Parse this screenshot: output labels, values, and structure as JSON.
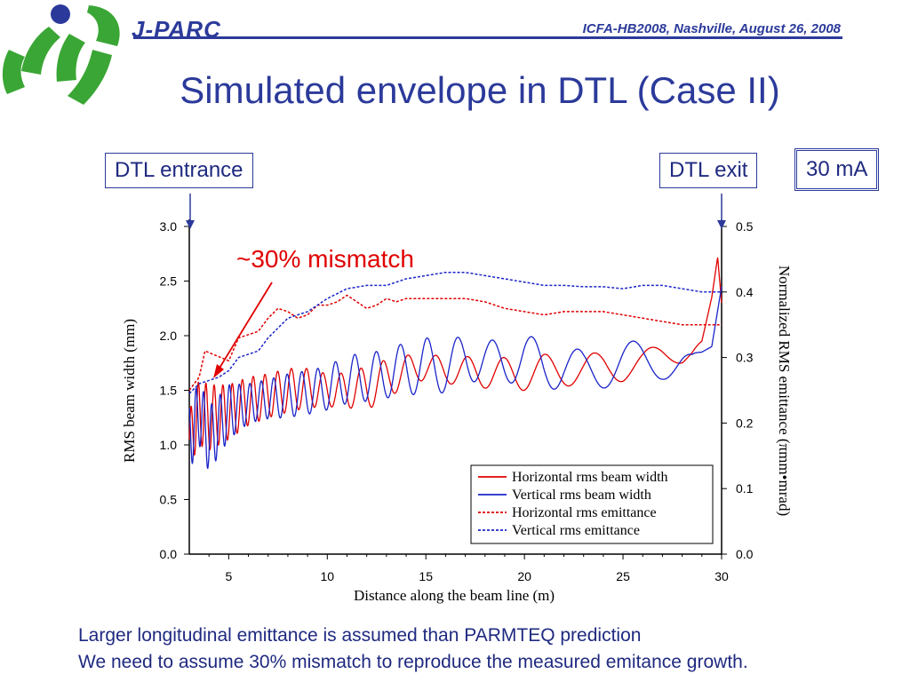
{
  "header": {
    "brand": "J-PARC",
    "conference": "ICFA-HB2008, Nashville, August 26, 2008"
  },
  "title": "Simulated envelope in DTL (Case II)",
  "callouts": {
    "entrance": "DTL entrance",
    "exit": "DTL exit",
    "current": "30 mA",
    "mismatch": "~30% mismatch"
  },
  "footer": {
    "line1": "Larger longitudinal emittance is assumed than PARMTEQ prediction",
    "line2": "We need to assume 30% mismatch to reproduce the measured emitance growth."
  },
  "colors": {
    "brand": "#2b3a9a",
    "logo_green": "#3aa635",
    "red": "#e00000",
    "blue": "#1a24c8"
  },
  "chart_data": {
    "type": "line",
    "xlabel": "Distance along the beam line (m)",
    "ylabel": "RMS beam width (mm)",
    "y2label": "Normalized RMS emittance (πmm•mrad)",
    "xlim": [
      3,
      30
    ],
    "ylim": [
      0,
      3.0
    ],
    "y2lim": [
      0,
      0.5
    ],
    "xticks": [
      5,
      10,
      15,
      20,
      25,
      30
    ],
    "yticks": [
      "0.0",
      "0.5",
      "1.0",
      "1.5",
      "2.0",
      "2.5",
      "3.0"
    ],
    "y2ticks": [
      "0.0",
      "0.1",
      "0.2",
      "0.3",
      "0.4",
      "0.5"
    ],
    "legend_position": "bottom-right",
    "series": [
      {
        "name": "Horizontal rms beam width",
        "axis": "left",
        "style": "solid",
        "color": "#e00000",
        "x": [
          3.0,
          3.5,
          4.0,
          5.0,
          6.0,
          7.0,
          8.0,
          9.0,
          10.0,
          11.0,
          12.0,
          13.0,
          14.0,
          15.0,
          16.0,
          17.0,
          18.0,
          19.0,
          20.0,
          21.0,
          22.0,
          23.0,
          24.0,
          25.0,
          26.0,
          27.0,
          28.0,
          28.5,
          29.0,
          29.5,
          29.8,
          30.0
        ],
        "center": [
          1.05,
          1.3,
          1.25,
          1.3,
          1.4,
          1.45,
          1.5,
          1.52,
          1.5,
          1.5,
          1.52,
          1.6,
          1.68,
          1.72,
          1.68,
          1.68,
          1.66,
          1.64,
          1.66,
          1.68,
          1.68,
          1.68,
          1.72,
          1.72,
          1.75,
          1.8,
          1.85,
          1.88,
          1.95,
          2.35,
          2.72,
          2.3
        ],
        "amplitude": [
          0.25,
          0.3,
          0.3,
          0.25,
          0.22,
          0.2,
          0.2,
          0.18,
          0.15,
          0.16,
          0.2,
          0.18,
          0.14,
          0.12,
          0.12,
          0.13,
          0.14,
          0.16,
          0.16,
          0.15,
          0.14,
          0.14,
          0.14,
          0.14,
          0.12,
          0.12,
          0.1,
          0.05,
          0.0,
          0.0,
          0.0,
          0.0
        ]
      },
      {
        "name": "Vertical rms beam width",
        "axis": "left",
        "style": "solid",
        "color": "#1a24c8",
        "x": [
          3.0,
          3.5,
          4.0,
          5.0,
          6.0,
          7.0,
          8.0,
          9.0,
          10.0,
          11.0,
          12.0,
          13.0,
          14.0,
          15.0,
          16.0,
          17.0,
          18.0,
          19.0,
          20.0,
          21.0,
          22.0,
          23.0,
          24.0,
          25.0,
          26.0,
          27.0,
          28.0,
          28.5,
          29.0,
          29.5,
          30.0
        ],
        "center": [
          1.05,
          1.3,
          1.05,
          1.3,
          1.38,
          1.42,
          1.45,
          1.48,
          1.52,
          1.6,
          1.62,
          1.65,
          1.7,
          1.72,
          1.72,
          1.78,
          1.78,
          1.76,
          1.8,
          1.72,
          1.72,
          1.68,
          1.7,
          1.74,
          1.76,
          1.78,
          1.76,
          1.74,
          1.85,
          1.9,
          2.45
        ],
        "amplitude": [
          0.3,
          0.3,
          0.3,
          0.25,
          0.18,
          0.18,
          0.2,
          0.2,
          0.2,
          0.22,
          0.22,
          0.22,
          0.24,
          0.26,
          0.24,
          0.22,
          0.18,
          0.2,
          0.22,
          0.22,
          0.2,
          0.18,
          0.18,
          0.2,
          0.2,
          0.18,
          0.15,
          0.1,
          0.0,
          0.0,
          0.0
        ]
      },
      {
        "name": "Horizontal rms emittance",
        "axis": "right",
        "style": "dotted",
        "color": "#e00000",
        "x": [
          3.0,
          3.5,
          3.8,
          4.2,
          4.6,
          5.0,
          5.5,
          6.0,
          6.5,
          7.0,
          7.5,
          8.0,
          8.5,
          9.0,
          9.5,
          10.0,
          10.5,
          11.0,
          11.5,
          12.0,
          12.5,
          13.0,
          13.5,
          14.0,
          15.0,
          16.0,
          17.0,
          18.0,
          19.0,
          20.0,
          21.0,
          22.0,
          23.0,
          24.0,
          25.0,
          26.0,
          27.0,
          28.0,
          29.0,
          30.0
        ],
        "y": [
          0.25,
          0.27,
          0.31,
          0.305,
          0.3,
          0.295,
          0.33,
          0.335,
          0.34,
          0.36,
          0.375,
          0.37,
          0.36,
          0.365,
          0.38,
          0.38,
          0.385,
          0.395,
          0.385,
          0.375,
          0.38,
          0.39,
          0.385,
          0.39,
          0.39,
          0.39,
          0.39,
          0.385,
          0.375,
          0.37,
          0.365,
          0.37,
          0.37,
          0.37,
          0.365,
          0.36,
          0.355,
          0.35,
          0.35,
          0.35
        ]
      },
      {
        "name": "Vertical rms emittance",
        "axis": "right",
        "style": "dotted",
        "color": "#1a24c8",
        "x": [
          3.0,
          3.5,
          4.0,
          4.5,
          5.0,
          5.5,
          6.0,
          6.5,
          7.0,
          7.5,
          8.0,
          8.5,
          9.0,
          9.5,
          10.0,
          11.0,
          12.0,
          13.0,
          14.0,
          15.0,
          16.0,
          17.0,
          18.0,
          19.0,
          20.0,
          21.0,
          22.0,
          23.0,
          24.0,
          25.0,
          26.0,
          27.0,
          28.0,
          29.0,
          30.0
        ],
        "y": [
          0.245,
          0.26,
          0.265,
          0.27,
          0.28,
          0.3,
          0.305,
          0.31,
          0.33,
          0.345,
          0.36,
          0.365,
          0.37,
          0.38,
          0.39,
          0.405,
          0.41,
          0.41,
          0.42,
          0.425,
          0.43,
          0.43,
          0.425,
          0.42,
          0.415,
          0.41,
          0.41,
          0.408,
          0.408,
          0.405,
          0.41,
          0.41,
          0.405,
          0.4,
          0.4
        ]
      }
    ]
  }
}
